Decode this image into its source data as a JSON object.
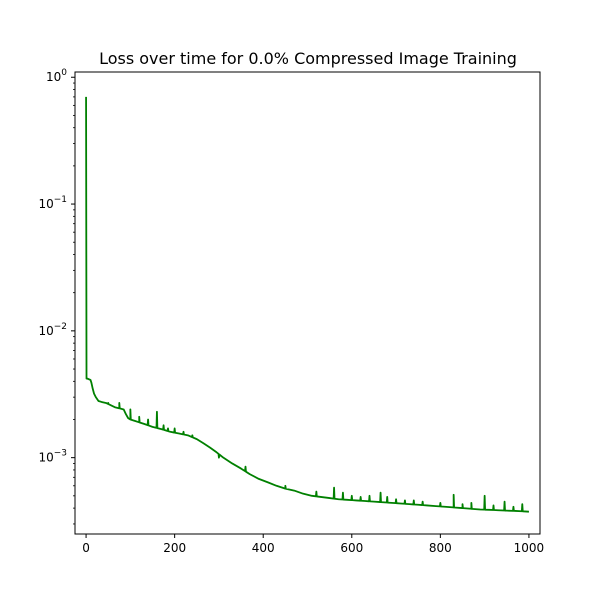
{
  "chart_data": {
    "type": "line",
    "title": "Loss over time for 0.0% Compressed Image Training",
    "xlabel": "",
    "ylabel": "",
    "xlim": [
      -25,
      1025
    ],
    "ylim": [
      0.00025,
      1.1
    ],
    "yscale": "log",
    "grid": false,
    "x_ticks": [
      0,
      200,
      400,
      600,
      800,
      1000
    ],
    "y_ticks": [
      {
        "value": 0.001,
        "base": "10",
        "exp": "−3"
      },
      {
        "value": 0.01,
        "base": "10",
        "exp": "−2"
      },
      {
        "value": 0.1,
        "base": "10",
        "exp": "−1"
      },
      {
        "value": 1,
        "base": "10",
        "exp": "0"
      }
    ],
    "series": [
      {
        "color": "#008000",
        "x": [
          0,
          1,
          3,
          10,
          12,
          15,
          18,
          22,
          28,
          35,
          45,
          55,
          65,
          75,
          85,
          90,
          95,
          100,
          110,
          120,
          130,
          150,
          170,
          190,
          210,
          230,
          250,
          265,
          280,
          295,
          310,
          330,
          350,
          370,
          390,
          410,
          430,
          450,
          470,
          490,
          510,
          530,
          550,
          570,
          590,
          610,
          630,
          650,
          670,
          690,
          710,
          730,
          750,
          770,
          790,
          810,
          830,
          850,
          870,
          890,
          910,
          930,
          950,
          970,
          1000
        ],
        "y": [
          0.7,
          0.0042,
          0.0042,
          0.0041,
          0.0039,
          0.0035,
          0.0032,
          0.003,
          0.0028,
          0.00275,
          0.0027,
          0.0026,
          0.0025,
          0.00245,
          0.0024,
          0.0022,
          0.00205,
          0.002,
          0.00195,
          0.0019,
          0.00185,
          0.00175,
          0.00168,
          0.0016,
          0.00155,
          0.0015,
          0.0014,
          0.0013,
          0.0012,
          0.0011,
          0.001,
          0.0009,
          0.00082,
          0.00074,
          0.00068,
          0.00064,
          0.0006,
          0.00057,
          0.00055,
          0.00052,
          0.0005,
          0.00049,
          0.00048,
          0.00047,
          0.000465,
          0.00046,
          0.000455,
          0.00045,
          0.000445,
          0.00044,
          0.000435,
          0.00043,
          0.000425,
          0.00042,
          0.000415,
          0.00041,
          0.000405,
          0.0004,
          0.000395,
          0.00039,
          0.000388,
          0.000385,
          0.000382,
          0.00038,
          0.000375
        ]
      }
    ],
    "spikes": [
      [
        50,
        0.0027
      ],
      [
        75,
        0.0027
      ],
      [
        100,
        0.0024
      ],
      [
        120,
        0.0021
      ],
      [
        140,
        0.002
      ],
      [
        160,
        0.0023
      ],
      [
        175,
        0.0018
      ],
      [
        185,
        0.0017
      ],
      [
        200,
        0.0017
      ],
      [
        220,
        0.0016
      ],
      [
        240,
        0.0015
      ],
      [
        300,
        0.001
      ],
      [
        360,
        0.00085
      ],
      [
        450,
        0.0006
      ],
      [
        520,
        0.00054
      ],
      [
        560,
        0.00058
      ],
      [
        580,
        0.00053
      ],
      [
        600,
        0.0005
      ],
      [
        620,
        0.00049
      ],
      [
        640,
        0.0005
      ],
      [
        665,
        0.00053
      ],
      [
        680,
        0.00049
      ],
      [
        700,
        0.00047
      ],
      [
        720,
        0.00046
      ],
      [
        740,
        0.00046
      ],
      [
        760,
        0.00045
      ],
      [
        800,
        0.00044
      ],
      [
        830,
        0.00051
      ],
      [
        850,
        0.00043
      ],
      [
        870,
        0.00044
      ],
      [
        900,
        0.0005
      ],
      [
        920,
        0.00042
      ],
      [
        945,
        0.00045
      ],
      [
        965,
        0.00041
      ],
      [
        985,
        0.00043
      ]
    ]
  }
}
